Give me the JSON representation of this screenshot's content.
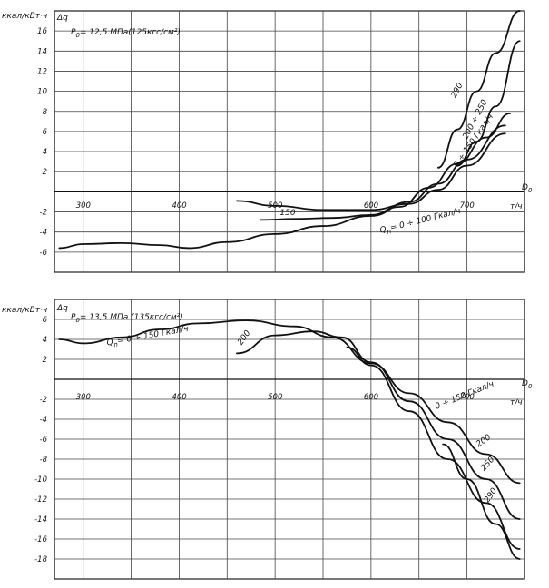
{
  "chart_data": [
    {
      "type": "line",
      "condition_label": "P",
      "condition_subscript": "0",
      "condition_value": "= 12,5 МПа(125кгс/см²)",
      "ylabel": "ккал/кВт·ч",
      "ylabel_symbol": "Δq",
      "xlabel": "D",
      "xlabel_subscript": "0",
      "xunit": "т/ч",
      "xlim": [
        270,
        760
      ],
      "ylim": [
        -8,
        18
      ],
      "xticks": [
        300,
        400,
        500,
        600,
        700
      ],
      "yticks": [
        16,
        14,
        12,
        10,
        8,
        6,
        4,
        2,
        -2,
        -4,
        -6
      ],
      "grid": true,
      "series": [
        {
          "label": "Q",
          "label_sub": "п",
          "label_tail": "= 0 ÷ 100 Гкал/ч",
          "x": [
            275,
            300,
            340,
            380,
            410,
            450,
            500,
            550,
            600,
            640,
            670,
            700,
            740
          ],
          "y": [
            -5.6,
            -5.2,
            -5.1,
            -5.3,
            -5.6,
            -5.0,
            -4.2,
            -3.4,
            -2.4,
            -1.0,
            0.8,
            3.2,
            6.6
          ]
        },
        {
          "label": "150",
          "x": [
            460,
            500,
            550,
            600,
            640,
            670,
            700,
            740
          ],
          "y": [
            -0.9,
            -1.4,
            -1.8,
            -1.8,
            -1.2,
            0.2,
            2.6,
            5.8
          ]
        },
        {
          "label": "150",
          "x": [
            485,
            520,
            560,
            600,
            630,
            660,
            690,
            720,
            745
          ],
          "y": [
            -2.8,
            -2.7,
            -2.6,
            -2.3,
            -1.5,
            0.4,
            2.8,
            5.4,
            7.8
          ]
        },
        {
          "label": "200 ÷ 250",
          "x": [
            690,
            710,
            730,
            755
          ],
          "y": [
            2.6,
            5.0,
            8.5,
            15.0
          ]
        },
        {
          "label": "290",
          "x": [
            670,
            690,
            710,
            730,
            755
          ],
          "y": [
            2.4,
            6.2,
            10.0,
            13.8,
            18.0
          ]
        }
      ]
    },
    {
      "type": "line",
      "condition_label": "P",
      "condition_subscript": "0",
      "condition_value": "= 13,5 МПа (135кгс/см²)",
      "ylabel": "ккал/кВт·ч",
      "ylabel_symbol": "Δq",
      "xlabel": "D",
      "xlabel_subscript": "0",
      "xunit": "т/ч",
      "xlim": [
        270,
        760
      ],
      "ylim": [
        -20,
        8
      ],
      "xticks": [
        300,
        400,
        500,
        600,
        700
      ],
      "yticks": [
        6,
        4,
        2,
        -2,
        -4,
        -6,
        -8,
        -10,
        -12,
        -14,
        -16,
        -18
      ],
      "grid": true,
      "series": [
        {
          "label": "Q",
          "label_sub": "п",
          "label_tail": "= 0 ÷ 150 Гкал/ч",
          "x": [
            275,
            300,
            340,
            380,
            420,
            470,
            520,
            560,
            600,
            640,
            680,
            720,
            755
          ],
          "y": [
            4.0,
            3.6,
            4.2,
            5.0,
            5.6,
            5.9,
            5.3,
            4.2,
            1.6,
            -1.4,
            -4.3,
            -7.5,
            -10.4
          ]
        },
        {
          "label": "200",
          "x": [
            460,
            500,
            540,
            570,
            600,
            640,
            680,
            720,
            755
          ],
          "y": [
            2.6,
            4.4,
            4.8,
            4.2,
            1.7,
            -2.2,
            -6.0,
            -10.0,
            -14.0
          ]
        },
        {
          "label": "250",
          "x": [
            575,
            600,
            640,
            680,
            720,
            755
          ],
          "y": [
            3.2,
            1.4,
            -3.2,
            -8.0,
            -12.4,
            -17.0
          ]
        },
        {
          "label": "290",
          "x": [
            675,
            700,
            730,
            755
          ],
          "y": [
            -6.5,
            -10.0,
            -14.5,
            -18.0
          ]
        }
      ]
    }
  ]
}
